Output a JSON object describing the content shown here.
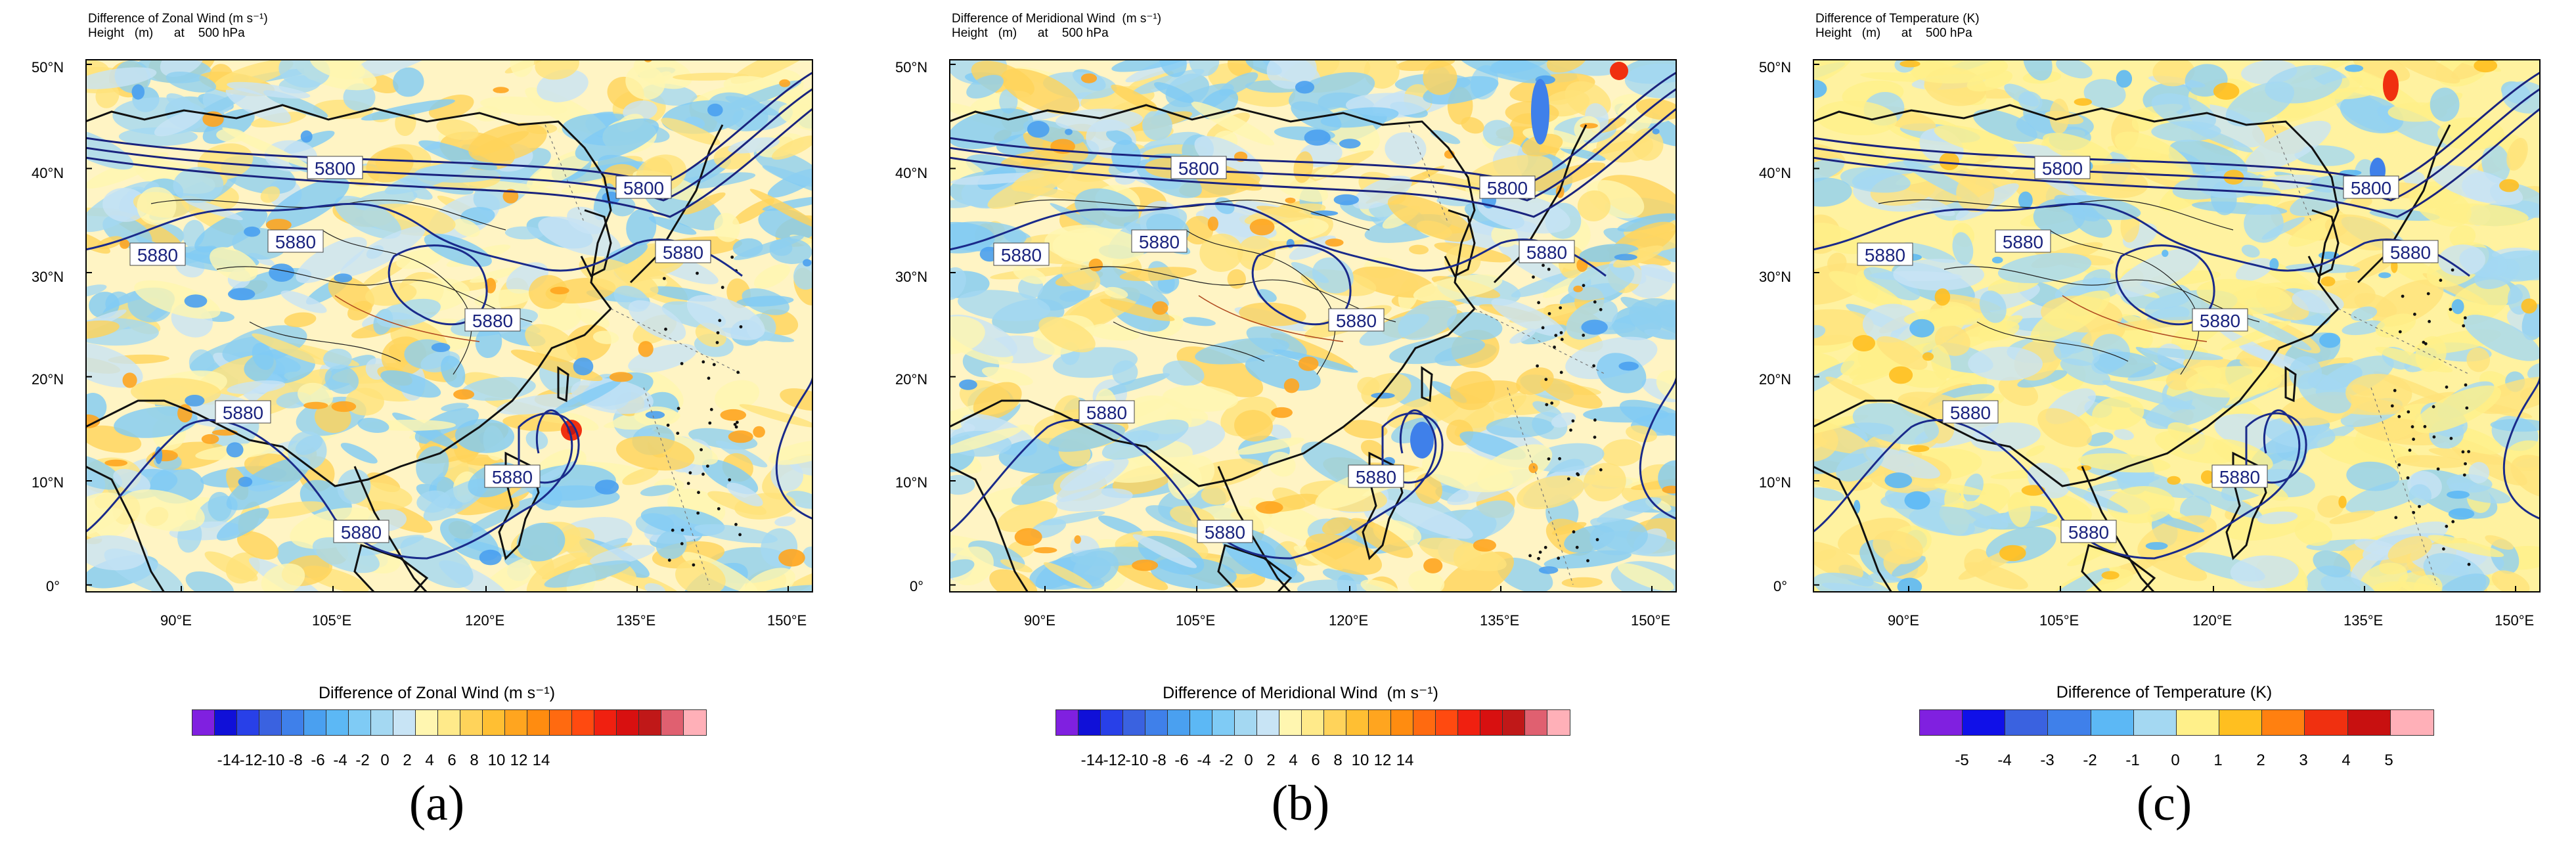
{
  "panels": [
    {
      "id": "a",
      "header_line1": "Difference of Zonal Wind (m s⁻¹)",
      "header_line2": "Height   (m)      at    500 hPa",
      "colorbar_title": "Difference of Zonal Wind (m s⁻¹)",
      "colorbar_ticks": [
        "-14",
        "-12",
        "-10",
        "-8",
        "-6",
        "-4",
        "-2",
        "0",
        "2",
        "4",
        "6",
        "8",
        "10",
        "12",
        "14"
      ],
      "panel_label": "(a)",
      "contour_labels": [
        "5800",
        "5800",
        "5880",
        "5880",
        "5880",
        "5880",
        "5880",
        "5880",
        "5880"
      ]
    },
    {
      "id": "b",
      "header_line1": "Difference of Meridional Wind  (m s⁻¹)",
      "header_line2": "Height   (m)      at    500 hPa",
      "colorbar_title": "Difference of Meridional Wind  (m s⁻¹)",
      "colorbar_ticks": [
        "-14",
        "-12",
        "-10",
        "-8",
        "-6",
        "-4",
        "-2",
        "0",
        "2",
        "4",
        "6",
        "8",
        "10",
        "12",
        "14"
      ],
      "panel_label": "(b)",
      "contour_labels": [
        "5800",
        "5800",
        "5880",
        "5880",
        "5880",
        "5880",
        "5880",
        "5880",
        "5880"
      ]
    },
    {
      "id": "c",
      "header_line1": "Difference of Temperature (K)",
      "header_line2": "Height   (m)      at    500 hPa",
      "colorbar_title": "Difference of Temperature (K)",
      "colorbar_ticks": [
        "-5",
        "-4",
        "-3",
        "-2",
        "-1",
        "0",
        "1",
        "2",
        "3",
        "4",
        "5"
      ],
      "panel_label": "(c)",
      "contour_labels": [
        "5800",
        "5800",
        "5880",
        "5880",
        "5880",
        "5880",
        "5880",
        "5880",
        "5880"
      ]
    }
  ],
  "lat_labels": [
    "50°N",
    "40°N",
    "30°N",
    "20°N",
    "10°N",
    "0°"
  ],
  "lon_labels": [
    "90°E",
    "105°E",
    "120°E",
    "135°E",
    "150°E"
  ],
  "wind_colors": [
    "#8020e0",
    "#1010d8",
    "#2840e8",
    "#3a62e0",
    "#3f80ea",
    "#4aa0f0",
    "#5cb8f5",
    "#7fcbf5",
    "#a4d8f2",
    "#c8e4f5",
    "#fff6b0",
    "#ffea8a",
    "#ffd35a",
    "#ffbf33",
    "#ffa51f",
    "#ff8c10",
    "#ff6a10",
    "#ff4a10",
    "#f02010",
    "#d81010",
    "#c01818",
    "#e06070",
    "#ffb0b8"
  ],
  "temp_colors": [
    "#8020e0",
    "#1010e8",
    "#3a62e0",
    "#3f80ea",
    "#5cb8f5",
    "#a4d8f2",
    "#fff08a",
    "#ffbf20",
    "#ff8010",
    "#f03010",
    "#c81010",
    "#ffb0b8"
  ]
}
